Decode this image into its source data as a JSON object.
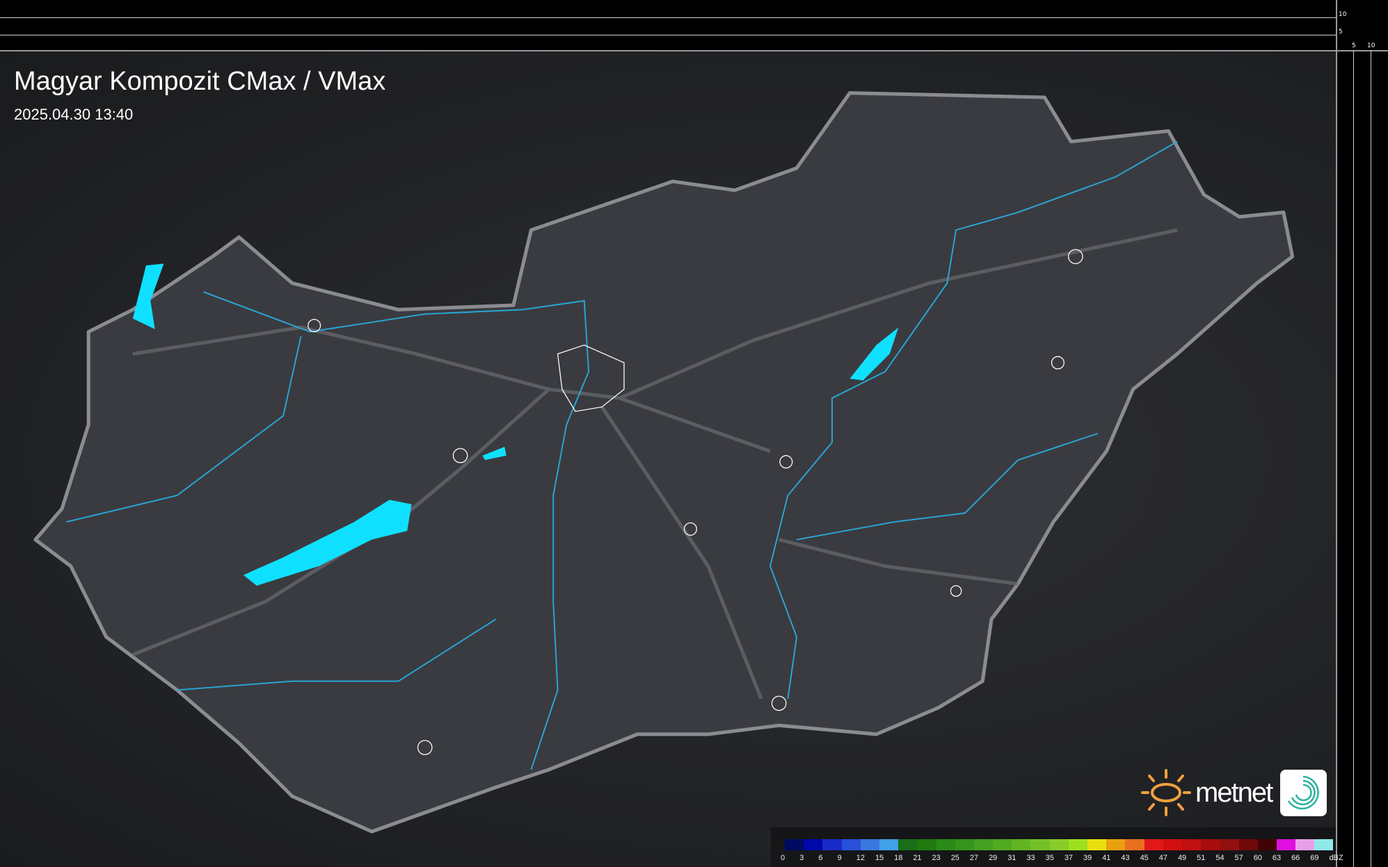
{
  "header": {
    "title": "Magyar Kompozit CMax / VMax",
    "timestamp": "2025.04.30 13:40"
  },
  "scale_ruler": {
    "vertical": [
      "10",
      "5"
    ],
    "horizontal": [
      "5",
      "10"
    ]
  },
  "legend": {
    "unit": "dBZ",
    "ticks": [
      "0",
      "3",
      "6",
      "9",
      "12",
      "15",
      "18",
      "21",
      "23",
      "25",
      "27",
      "29",
      "31",
      "33",
      "35",
      "37",
      "39",
      "41",
      "43",
      "45",
      "47",
      "49",
      "51",
      "54",
      "57",
      "60",
      "63",
      "66",
      "69"
    ],
    "colors": [
      "#000a60",
      "#0008a8",
      "#1a2ac8",
      "#2850d8",
      "#3a78e0",
      "#40a0e8",
      "#1a6e18",
      "#207a10",
      "#2a8a18",
      "#36941c",
      "#44a020",
      "#52aa20",
      "#62b424",
      "#74c028",
      "#88cc2a",
      "#9ce020",
      "#e8e010",
      "#e8a010",
      "#e87020",
      "#e01818",
      "#d01010",
      "#c01010",
      "#a80c0c",
      "#901010",
      "#700808",
      "#400404",
      "#e010e0",
      "#e8a0e8",
      "#90e8e8"
    ]
  },
  "branding": {
    "logo_text": "metnet",
    "sun_color": "#f0a040",
    "app_icon_color": "#2ab0a0"
  },
  "map": {
    "country_fill": "#3a3b40",
    "border_color": "#8a8c92",
    "river_color": "#28a8d8",
    "lake_color": "#10e0ff"
  }
}
